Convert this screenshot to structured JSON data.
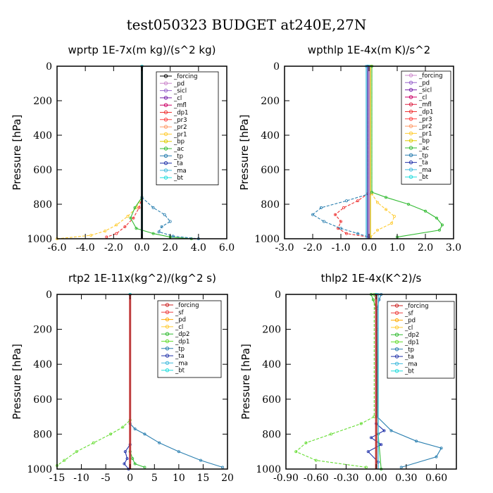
{
  "figure_title": "test050323  BUDGET at240E,27N",
  "chart_data": [
    {
      "type": "line",
      "title": "wprtp   1E-7x(m kg)/(s^2 kg)",
      "ylabel": "Pressure [hPa]",
      "xlim": [
        -6.0,
        6.0
      ],
      "ylim": [
        1000,
        0
      ],
      "xticks": [
        "-6.0",
        "-4.0",
        "-2.0",
        "0.0",
        "2.0",
        "4.0",
        "6.0"
      ],
      "xtick_values": [
        -6,
        -4,
        -2,
        0,
        2,
        4,
        6
      ],
      "yticks": [
        "0",
        "200",
        "400",
        "600",
        "800",
        "1000"
      ],
      "ytick_values": [
        0,
        200,
        400,
        600,
        800,
        1000
      ],
      "legend_placement": "top-right",
      "series": [
        {
          "name": "_forcing",
          "color": "#000000",
          "x": [
            0,
            0
          ],
          "y": [
            0,
            1000
          ]
        },
        {
          "name": "_pd",
          "color": "#cc88cc",
          "x": [
            0,
            0
          ],
          "y": [
            0,
            1000
          ]
        },
        {
          "name": "_sicl",
          "color": "#9966cc",
          "x": [
            0,
            0
          ],
          "y": [
            0,
            1000
          ]
        },
        {
          "name": "_cl",
          "color": "#7722aa",
          "x": [
            0,
            0
          ],
          "y": [
            0,
            1000
          ]
        },
        {
          "name": "_mfl",
          "color": "#cc0066",
          "x": [
            0,
            0
          ],
          "y": [
            0,
            1000
          ]
        },
        {
          "name": "_dp1",
          "color": "#ee3333",
          "x": [
            0,
            0,
            -0.2,
            -0.6,
            -1.2,
            -1.8,
            -2.5
          ],
          "y": [
            0,
            760,
            820,
            880,
            930,
            970,
            990
          ]
        },
        {
          "name": "_pr3",
          "color": "#ff4444",
          "x": [
            0,
            0
          ],
          "y": [
            0,
            1000
          ]
        },
        {
          "name": "_pr2",
          "color": "#ff9966",
          "x": [
            0,
            0
          ],
          "y": [
            0,
            1000
          ]
        },
        {
          "name": "_pr1",
          "color": "#ffcc33",
          "x": [
            0,
            0,
            -0.4,
            -1.0,
            -1.8,
            -2.6,
            -3.6,
            -6.0
          ],
          "y": [
            0,
            760,
            820,
            870,
            920,
            955,
            980,
            1000
          ]
        },
        {
          "name": "_bp",
          "color": "#ddcc00",
          "x": [
            0,
            0
          ],
          "y": [
            0,
            1000
          ]
        },
        {
          "name": "_ac",
          "color": "#33bb33",
          "x": [
            0,
            0,
            -0.5,
            -0.8,
            -0.4,
            0.8,
            2.0,
            3.5
          ],
          "y": [
            0,
            760,
            820,
            880,
            940,
            970,
            990,
            1000
          ]
        },
        {
          "name": "_tp",
          "color": "#2a7fb0",
          "x": [
            0,
            0,
            0.8,
            1.6,
            2.0,
            1.4,
            1.2,
            2.2,
            4.0
          ],
          "y": [
            0,
            760,
            820,
            860,
            900,
            930,
            960,
            985,
            1000
          ]
        },
        {
          "name": "_ta",
          "color": "#2233aa",
          "x": [
            0,
            0
          ],
          "y": [
            0,
            1000
          ]
        },
        {
          "name": "_ma",
          "color": "#44bbdd",
          "x": [
            0,
            0
          ],
          "y": [
            0,
            1000
          ]
        },
        {
          "name": "_bt",
          "color": "#22dddd",
          "x": [
            0,
            0
          ],
          "y": [
            0,
            1000
          ]
        }
      ]
    },
    {
      "type": "line",
      "title": "wpthlp   1E-4x(m K)/s^2",
      "ylabel": "Pressure [hPa]",
      "xlim": [
        -3.0,
        3.0
      ],
      "ylim": [
        1000,
        0
      ],
      "xticks": [
        "-3.0",
        "-2.0",
        "-1.0",
        "0.0",
        "1.0",
        "2.0",
        "3.0"
      ],
      "xtick_values": [
        -3,
        -2,
        -1,
        0,
        1,
        2,
        3
      ],
      "yticks": [
        "0",
        "200",
        "400",
        "600",
        "800",
        "1000"
      ],
      "ytick_values": [
        0,
        200,
        400,
        600,
        800,
        1000
      ],
      "legend_placement": "top-right",
      "series": [
        {
          "name": "_forcing",
          "color": "#cc88cc",
          "x": [
            0,
            0
          ],
          "y": [
            0,
            1000
          ]
        },
        {
          "name": "_pd",
          "color": "#9966cc",
          "x": [
            0,
            0
          ],
          "y": [
            0,
            1000
          ]
        },
        {
          "name": "_sicl",
          "color": "#7722aa",
          "x": [
            0,
            0
          ],
          "y": [
            0,
            1000
          ]
        },
        {
          "name": "_cl",
          "color": "#cc0066",
          "x": [
            0,
            0
          ],
          "y": [
            0,
            1000
          ]
        },
        {
          "name": "_mfl",
          "color": "#dd2244",
          "x": [
            0,
            0
          ],
          "y": [
            0,
            1000
          ]
        },
        {
          "name": "_dp1",
          "color": "#ee3333",
          "x": [
            0,
            -0.05,
            -0.4,
            -0.9,
            -1.2,
            -1.0,
            -1.1,
            -0.8,
            0
          ],
          "y": [
            0,
            740,
            780,
            820,
            860,
            900,
            940,
            970,
            990
          ]
        },
        {
          "name": "_pr3",
          "color": "#ff4444",
          "x": [
            0,
            0
          ],
          "y": [
            0,
            1000
          ]
        },
        {
          "name": "_pr2",
          "color": "#ff9966",
          "x": [
            0,
            0
          ],
          "y": [
            0,
            1000
          ]
        },
        {
          "name": "_pr1",
          "color": "#ffcc33",
          "x": [
            0.1,
            0.1,
            0.3,
            0.6,
            0.9,
            0.8,
            0.3,
            0.05
          ],
          "y": [
            0,
            740,
            790,
            830,
            870,
            910,
            950,
            990
          ]
        },
        {
          "name": "_bp",
          "color": "#ddcc00",
          "x": [
            0.05,
            0.05
          ],
          "y": [
            0,
            1000
          ]
        },
        {
          "name": "_ac",
          "color": "#33bb33",
          "x": [
            0.1,
            0.1,
            0.6,
            1.4,
            2.0,
            2.4,
            2.6,
            2.5,
            1.0
          ],
          "y": [
            0,
            730,
            760,
            800,
            840,
            880,
            920,
            950,
            990
          ]
        },
        {
          "name": "_tp",
          "color": "#2a7fb0",
          "x": [
            0,
            0,
            -0.8,
            -1.7,
            -2.0,
            -1.6,
            -1.0,
            -0.4,
            0
          ],
          "y": [
            0,
            740,
            780,
            820,
            860,
            900,
            940,
            970,
            990
          ]
        },
        {
          "name": "_ta",
          "color": "#2233aa",
          "x": [
            -0.05,
            -0.05
          ],
          "y": [
            0,
            1000
          ]
        },
        {
          "name": "_ma",
          "color": "#44bbdd",
          "x": [
            -0.1,
            -0.1
          ],
          "y": [
            0,
            1000
          ]
        },
        {
          "name": "_bt",
          "color": "#22dddd",
          "x": [
            0,
            0
          ],
          "y": [
            0,
            1000
          ]
        }
      ]
    },
    {
      "type": "line",
      "title": "rtp2   1E-11x(kg^2)/(kg^2 s)",
      "ylabel": "Pressure [hPa]",
      "xlim": [
        -15,
        20
      ],
      "ylim": [
        1000,
        0
      ],
      "xticks": [
        "-15",
        "-10",
        "-5",
        "0",
        "5",
        "10",
        "15",
        "20"
      ],
      "xtick_values": [
        -15,
        -10,
        -5,
        0,
        5,
        10,
        15,
        20
      ],
      "yticks": [
        "0",
        "200",
        "400",
        "600",
        "800",
        "1000"
      ],
      "ytick_values": [
        0,
        200,
        400,
        600,
        800,
        1000
      ],
      "legend_placement": "top-right",
      "series": [
        {
          "name": "_forcing",
          "color": "#cc2222",
          "x": [
            0,
            0
          ],
          "y": [
            0,
            1000
          ]
        },
        {
          "name": "_sf",
          "color": "#ee4444",
          "x": [
            0,
            0
          ],
          "y": [
            0,
            1000
          ]
        },
        {
          "name": "_pd",
          "color": "#ffaa00",
          "x": [
            0,
            0
          ],
          "y": [
            0,
            1000
          ]
        },
        {
          "name": "_cl",
          "color": "#ffcc33",
          "x": [
            0,
            0
          ],
          "y": [
            0,
            1000
          ]
        },
        {
          "name": "_dp2",
          "color": "#33bb33",
          "x": [
            0,
            0,
            0.5,
            1.0,
            3.0
          ],
          "y": [
            0,
            900,
            940,
            970,
            990
          ]
        },
        {
          "name": "_dp1",
          "color": "#66dd33",
          "x": [
            0,
            0,
            -1.5,
            -4.0,
            -7.5,
            -11.0,
            -13.5,
            -15.0
          ],
          "y": [
            0,
            720,
            760,
            800,
            850,
            900,
            950,
            980
          ]
        },
        {
          "name": "_tp",
          "color": "#2a7fb0",
          "x": [
            0,
            0,
            1.0,
            3.0,
            6.0,
            10.0,
            14.5,
            19.0
          ],
          "y": [
            0,
            740,
            770,
            800,
            850,
            900,
            950,
            990
          ]
        },
        {
          "name": "_ta",
          "color": "#2233aa",
          "x": [
            0,
            0,
            -1.0,
            -0.6,
            -1.2,
            -0.3
          ],
          "y": [
            0,
            860,
            900,
            940,
            970,
            1000
          ]
        },
        {
          "name": "_ma",
          "color": "#44bbdd",
          "x": [
            0,
            0
          ],
          "y": [
            0,
            1000
          ]
        },
        {
          "name": "_bt",
          "color": "#22dddd",
          "x": [
            0,
            0
          ],
          "y": [
            0,
            1000
          ]
        }
      ]
    },
    {
      "type": "line",
      "title": "thlp2   1E-4x(K^2)/s",
      "ylabel": "Pressure [hPa]",
      "xlim": [
        -0.9,
        0.8
      ],
      "ylim": [
        1000,
        0
      ],
      "xticks": [
        "-0.90",
        "-0.60",
        "-0.30",
        "0.00",
        "0.30",
        "0.60"
      ],
      "xtick_values": [
        -0.9,
        -0.6,
        -0.3,
        0,
        0.3,
        0.6
      ],
      "yticks": [
        "0",
        "200",
        "400",
        "600",
        "800",
        "1000"
      ],
      "ytick_values": [
        0,
        200,
        400,
        600,
        800,
        1000
      ],
      "legend_placement": "top-right",
      "series": [
        {
          "name": "_forcing",
          "color": "#cc2222",
          "x": [
            0,
            0
          ],
          "y": [
            0,
            1000
          ]
        },
        {
          "name": "_sf",
          "color": "#ee4444",
          "x": [
            0,
            0
          ],
          "y": [
            0,
            1000
          ]
        },
        {
          "name": "_pd",
          "color": "#ffaa00",
          "x": [
            0,
            0
          ],
          "y": [
            0,
            1000
          ]
        },
        {
          "name": "_cl",
          "color": "#ffcc33",
          "x": [
            0,
            0
          ],
          "y": [
            0,
            1000
          ]
        },
        {
          "name": "_dp2",
          "color": "#33bb33",
          "x": [
            -0.05,
            -0.03,
            0,
            0.01,
            0.02,
            0.05
          ],
          "y": [
            0,
            30,
            80,
            200,
            800,
            1000
          ]
        },
        {
          "name": "_dp1",
          "color": "#66dd33",
          "x": [
            -0.02,
            -0.02,
            -0.15,
            -0.45,
            -0.7,
            -0.8,
            -0.6,
            -0.1
          ],
          "y": [
            0,
            700,
            740,
            800,
            850,
            900,
            950,
            990
          ]
        },
        {
          "name": "_tp",
          "color": "#2a7fb0",
          "x": [
            0.05,
            0.03,
            0.01,
            0.01,
            0.15,
            0.4,
            0.65,
            0.6,
            0.25
          ],
          "y": [
            0,
            30,
            80,
            700,
            780,
            840,
            880,
            930,
            990
          ]
        },
        {
          "name": "_ta",
          "color": "#2233aa",
          "x": [
            0,
            0,
            0.08,
            -0.05,
            0.05,
            -0.08,
            0.02
          ],
          "y": [
            0,
            740,
            780,
            820,
            860,
            900,
            960
          ]
        },
        {
          "name": "_ma",
          "color": "#44bbdd",
          "x": [
            0.02,
            0.02
          ],
          "y": [
            0,
            1000
          ]
        },
        {
          "name": "_bt",
          "color": "#22dddd",
          "x": [
            0,
            0
          ],
          "y": [
            0,
            1000
          ]
        }
      ]
    }
  ]
}
